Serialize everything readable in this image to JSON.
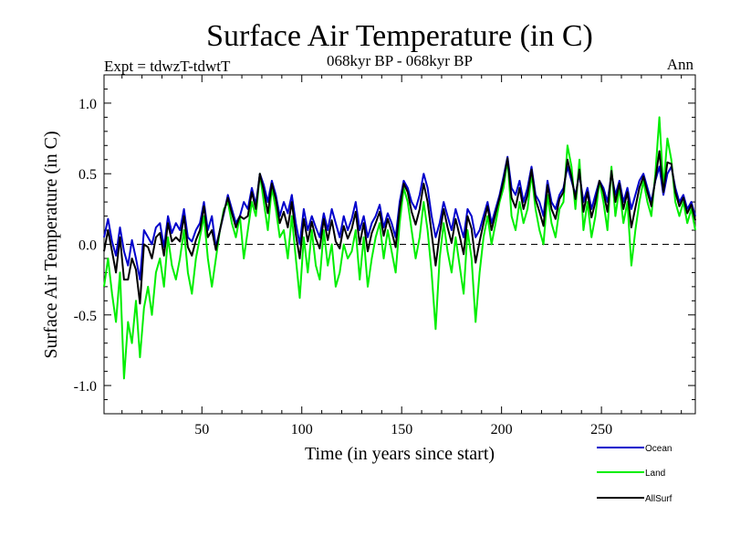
{
  "chart_data": {
    "type": "line",
    "title": "Surface Air Temperature (in C)",
    "subtitle": "068kyr BP - 068kyr BP",
    "expt_label": "Expt = tdwzT-tdwtT",
    "season_label": "Ann",
    "xlabel": "Time (in years since start)",
    "ylabel": "Surface Air Temperature (in C)",
    "xlim": [
      1,
      297
    ],
    "ylim": [
      -1.2,
      1.2
    ],
    "x_ticks": [
      50,
      100,
      150,
      200,
      250
    ],
    "x_tick_labels": [
      "50",
      "100",
      "150",
      "200",
      "250"
    ],
    "y_ticks": [
      -1.0,
      -0.5,
      0.0,
      0.5,
      1.0
    ],
    "y_tick_labels": [
      "-1.0",
      "-0.5",
      "0.0",
      "0.5",
      "1.0"
    ],
    "zero_line": "dashed",
    "legend_position": "bottom-right",
    "series": [
      {
        "name": "Ocean",
        "color": "#0000cc",
        "x": [
          1,
          3,
          5,
          7,
          9,
          11,
          13,
          15,
          17,
          19,
          21,
          23,
          25,
          27,
          29,
          31,
          33,
          35,
          37,
          39,
          41,
          43,
          45,
          47,
          49,
          51,
          53,
          55,
          57,
          59,
          61,
          63,
          65,
          67,
          69,
          71,
          73,
          75,
          77,
          79,
          81,
          83,
          85,
          87,
          89,
          91,
          93,
          95,
          97,
          99,
          101,
          103,
          105,
          107,
          109,
          111,
          113,
          115,
          117,
          119,
          121,
          123,
          125,
          127,
          129,
          131,
          133,
          135,
          137,
          139,
          141,
          143,
          145,
          147,
          149,
          151,
          153,
          155,
          157,
          159,
          161,
          163,
          165,
          167,
          169,
          171,
          173,
          175,
          177,
          179,
          181,
          183,
          185,
          187,
          189,
          191,
          193,
          195,
          197,
          199,
          201,
          203,
          205,
          207,
          209,
          211,
          213,
          215,
          217,
          219,
          221,
          223,
          225,
          227,
          229,
          231,
          233,
          235,
          237,
          239,
          241,
          243,
          245,
          247,
          249,
          251,
          253,
          255,
          257,
          259,
          261,
          263,
          265,
          267,
          269,
          271,
          273,
          275,
          277,
          279,
          281,
          283,
          285,
          287,
          289,
          291,
          293,
          295,
          297
        ],
        "values": [
          0.05,
          0.18,
          0.02,
          -0.08,
          0.12,
          -0.05,
          -0.15,
          0.03,
          -0.1,
          -0.25,
          0.1,
          0.05,
          0.0,
          0.12,
          0.15,
          -0.02,
          0.2,
          0.08,
          0.15,
          0.1,
          0.25,
          0.05,
          0.02,
          0.1,
          0.15,
          0.3,
          0.1,
          0.2,
          -0.02,
          0.1,
          0.22,
          0.35,
          0.25,
          0.15,
          0.2,
          0.3,
          0.25,
          0.4,
          0.28,
          0.5,
          0.42,
          0.3,
          0.45,
          0.35,
          0.2,
          0.3,
          0.22,
          0.35,
          0.15,
          0.0,
          0.25,
          0.1,
          0.2,
          0.12,
          0.05,
          0.22,
          0.1,
          0.25,
          0.15,
          0.05,
          0.2,
          0.1,
          0.18,
          0.3,
          0.1,
          0.2,
          0.05,
          0.15,
          0.2,
          0.28,
          0.12,
          0.22,
          0.15,
          0.05,
          0.3,
          0.45,
          0.4,
          0.3,
          0.25,
          0.35,
          0.5,
          0.4,
          0.2,
          0.05,
          0.15,
          0.3,
          0.2,
          0.1,
          0.25,
          0.15,
          0.05,
          0.25,
          0.2,
          0.05,
          0.1,
          0.2,
          0.3,
          0.15,
          0.25,
          0.35,
          0.48,
          0.62,
          0.4,
          0.35,
          0.45,
          0.3,
          0.4,
          0.55,
          0.35,
          0.3,
          0.2,
          0.45,
          0.3,
          0.25,
          0.35,
          0.4,
          0.55,
          0.45,
          0.35,
          0.5,
          0.3,
          0.4,
          0.25,
          0.35,
          0.45,
          0.4,
          0.3,
          0.5,
          0.35,
          0.45,
          0.3,
          0.4,
          0.25,
          0.35,
          0.45,
          0.5,
          0.4,
          0.3,
          0.45,
          0.55,
          0.35,
          0.5,
          0.55,
          0.4,
          0.3,
          0.35,
          0.25,
          0.3,
          0.2
        ]
      },
      {
        "name": "Land",
        "color": "#00ee00",
        "x": [
          1,
          3,
          5,
          7,
          9,
          11,
          13,
          15,
          17,
          19,
          21,
          23,
          25,
          27,
          29,
          31,
          33,
          35,
          37,
          39,
          41,
          43,
          45,
          47,
          49,
          51,
          53,
          55,
          57,
          59,
          61,
          63,
          65,
          67,
          69,
          71,
          73,
          75,
          77,
          79,
          81,
          83,
          85,
          87,
          89,
          91,
          93,
          95,
          97,
          99,
          101,
          103,
          105,
          107,
          109,
          111,
          113,
          115,
          117,
          119,
          121,
          123,
          125,
          127,
          129,
          131,
          133,
          135,
          137,
          139,
          141,
          143,
          145,
          147,
          149,
          151,
          153,
          155,
          157,
          159,
          161,
          163,
          165,
          167,
          169,
          171,
          173,
          175,
          177,
          179,
          181,
          183,
          185,
          187,
          189,
          191,
          193,
          195,
          197,
          199,
          201,
          203,
          205,
          207,
          209,
          211,
          213,
          215,
          217,
          219,
          221,
          223,
          225,
          227,
          229,
          231,
          233,
          235,
          237,
          239,
          241,
          243,
          245,
          247,
          249,
          251,
          253,
          255,
          257,
          259,
          261,
          263,
          265,
          267,
          269,
          271,
          273,
          275,
          277,
          279,
          281,
          283,
          285,
          287,
          289,
          291,
          293,
          295,
          297
        ],
        "values": [
          -0.3,
          -0.1,
          -0.35,
          -0.55,
          -0.2,
          -0.95,
          -0.55,
          -0.7,
          -0.4,
          -0.8,
          -0.45,
          -0.3,
          -0.5,
          -0.2,
          -0.1,
          -0.3,
          0.05,
          -0.15,
          -0.25,
          -0.1,
          0.1,
          -0.2,
          -0.35,
          -0.1,
          0.05,
          0.2,
          -0.1,
          -0.3,
          -0.1,
          0.1,
          0.25,
          0.3,
          0.15,
          0.05,
          0.2,
          -0.1,
          0.1,
          0.3,
          0.2,
          0.5,
          0.3,
          0.1,
          0.4,
          0.25,
          0.05,
          0.1,
          -0.1,
          0.2,
          -0.1,
          -0.38,
          0.05,
          -0.2,
          0.1,
          -0.15,
          -0.25,
          0.1,
          -0.15,
          0.0,
          -0.3,
          -0.2,
          0.0,
          -0.1,
          -0.05,
          0.1,
          -0.25,
          0.05,
          -0.3,
          -0.1,
          0.05,
          0.15,
          -0.1,
          0.1,
          -0.05,
          -0.2,
          0.15,
          0.4,
          0.3,
          0.1,
          -0.1,
          0.05,
          0.3,
          0.1,
          -0.2,
          -0.6,
          -0.1,
          0.15,
          -0.05,
          -0.2,
          0.05,
          -0.15,
          -0.35,
          0.1,
          -0.1,
          -0.55,
          -0.2,
          0.05,
          0.2,
          0.0,
          0.15,
          0.3,
          0.4,
          0.6,
          0.2,
          0.1,
          0.3,
          0.15,
          0.25,
          0.5,
          0.25,
          0.1,
          0.0,
          0.35,
          0.15,
          0.05,
          0.25,
          0.3,
          0.7,
          0.55,
          0.25,
          0.6,
          0.1,
          0.3,
          0.05,
          0.2,
          0.45,
          0.3,
          0.1,
          0.55,
          0.2,
          0.4,
          0.15,
          0.3,
          -0.15,
          0.1,
          0.3,
          0.45,
          0.3,
          0.2,
          0.5,
          0.9,
          0.4,
          0.75,
          0.6,
          0.3,
          0.2,
          0.3,
          0.15,
          0.25,
          0.1
        ]
      },
      {
        "name": "AllSurf",
        "color": "#000000",
        "x": [
          1,
          3,
          5,
          7,
          9,
          11,
          13,
          15,
          17,
          19,
          21,
          23,
          25,
          27,
          29,
          31,
          33,
          35,
          37,
          39,
          41,
          43,
          45,
          47,
          49,
          51,
          53,
          55,
          57,
          59,
          61,
          63,
          65,
          67,
          69,
          71,
          73,
          75,
          77,
          79,
          81,
          83,
          85,
          87,
          89,
          91,
          93,
          95,
          97,
          99,
          101,
          103,
          105,
          107,
          109,
          111,
          113,
          115,
          117,
          119,
          121,
          123,
          125,
          127,
          129,
          131,
          133,
          135,
          137,
          139,
          141,
          143,
          145,
          147,
          149,
          151,
          153,
          155,
          157,
          159,
          161,
          163,
          165,
          167,
          169,
          171,
          173,
          175,
          177,
          179,
          181,
          183,
          185,
          187,
          189,
          191,
          193,
          195,
          197,
          199,
          201,
          203,
          205,
          207,
          209,
          211,
          213,
          215,
          217,
          219,
          221,
          223,
          225,
          227,
          229,
          231,
          233,
          235,
          237,
          239,
          241,
          243,
          245,
          247,
          249,
          251,
          253,
          255,
          257,
          259,
          261,
          263,
          265,
          267,
          269,
          271,
          273,
          275,
          277,
          279,
          281,
          283,
          285,
          287,
          289,
          291,
          293,
          295,
          297
        ],
        "values": [
          -0.05,
          0.1,
          -0.05,
          -0.2,
          0.05,
          -0.25,
          -0.25,
          -0.1,
          -0.18,
          -0.42,
          0.0,
          -0.02,
          -0.1,
          0.05,
          0.08,
          -0.08,
          0.15,
          0.02,
          0.05,
          0.02,
          0.2,
          -0.02,
          -0.08,
          0.03,
          0.1,
          0.27,
          0.05,
          0.1,
          -0.04,
          0.1,
          0.23,
          0.33,
          0.22,
          0.12,
          0.2,
          0.18,
          0.2,
          0.37,
          0.25,
          0.5,
          0.38,
          0.22,
          0.43,
          0.32,
          0.15,
          0.23,
          0.12,
          0.3,
          0.07,
          -0.1,
          0.18,
          0.02,
          0.16,
          0.04,
          -0.03,
          0.18,
          0.03,
          0.17,
          0.02,
          -0.03,
          0.13,
          0.04,
          0.11,
          0.23,
          0.0,
          0.15,
          -0.05,
          0.08,
          0.15,
          0.23,
          0.06,
          0.18,
          0.09,
          -0.02,
          0.25,
          0.43,
          0.37,
          0.23,
          0.14,
          0.25,
          0.43,
          0.3,
          0.08,
          -0.15,
          0.07,
          0.25,
          0.12,
          0.01,
          0.18,
          0.06,
          -0.07,
          0.2,
          0.11,
          -0.13,
          0.02,
          0.15,
          0.27,
          0.1,
          0.22,
          0.33,
          0.45,
          0.61,
          0.33,
          0.26,
          0.4,
          0.25,
          0.35,
          0.53,
          0.32,
          0.23,
          0.13,
          0.42,
          0.25,
          0.18,
          0.32,
          0.37,
          0.6,
          0.48,
          0.32,
          0.53,
          0.23,
          0.37,
          0.19,
          0.3,
          0.45,
          0.37,
          0.23,
          0.52,
          0.3,
          0.43,
          0.25,
          0.37,
          0.12,
          0.26,
          0.4,
          0.48,
          0.37,
          0.27,
          0.46,
          0.66,
          0.37,
          0.58,
          0.57,
          0.37,
          0.27,
          0.33,
          0.22,
          0.28,
          0.17
        ]
      }
    ]
  }
}
